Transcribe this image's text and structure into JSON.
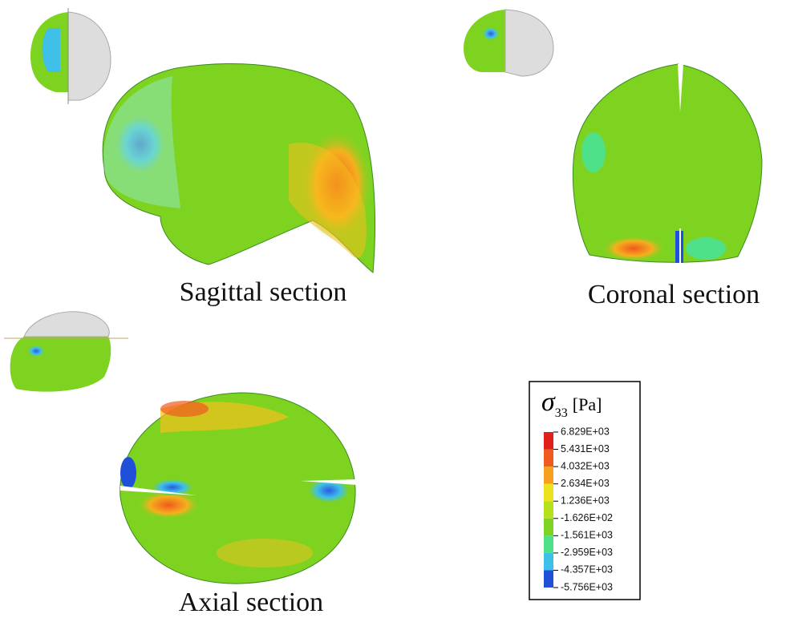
{
  "figure": {
    "sections": [
      {
        "label": "Sagittal section"
      },
      {
        "label": "Coronal section"
      },
      {
        "label": "Axial section"
      }
    ],
    "legend": {
      "symbol": "σ",
      "subscript": "33",
      "unit": "[Pa]",
      "labels": [
        "6.829E+03",
        "5.431E+03",
        "4.032E+03",
        "2.634E+03",
        "1.236E+03",
        "-1.626E+02",
        "-1.561E+03",
        "-2.959E+03",
        "-4.357E+03",
        "-5.756E+03"
      ],
      "colors": [
        "#e0201a",
        "#f05a1e",
        "#f5a01e",
        "#ece21e",
        "#b4e01e",
        "#7ed321",
        "#4fe08a",
        "#3fc0e8",
        "#2050d8"
      ]
    }
  }
}
